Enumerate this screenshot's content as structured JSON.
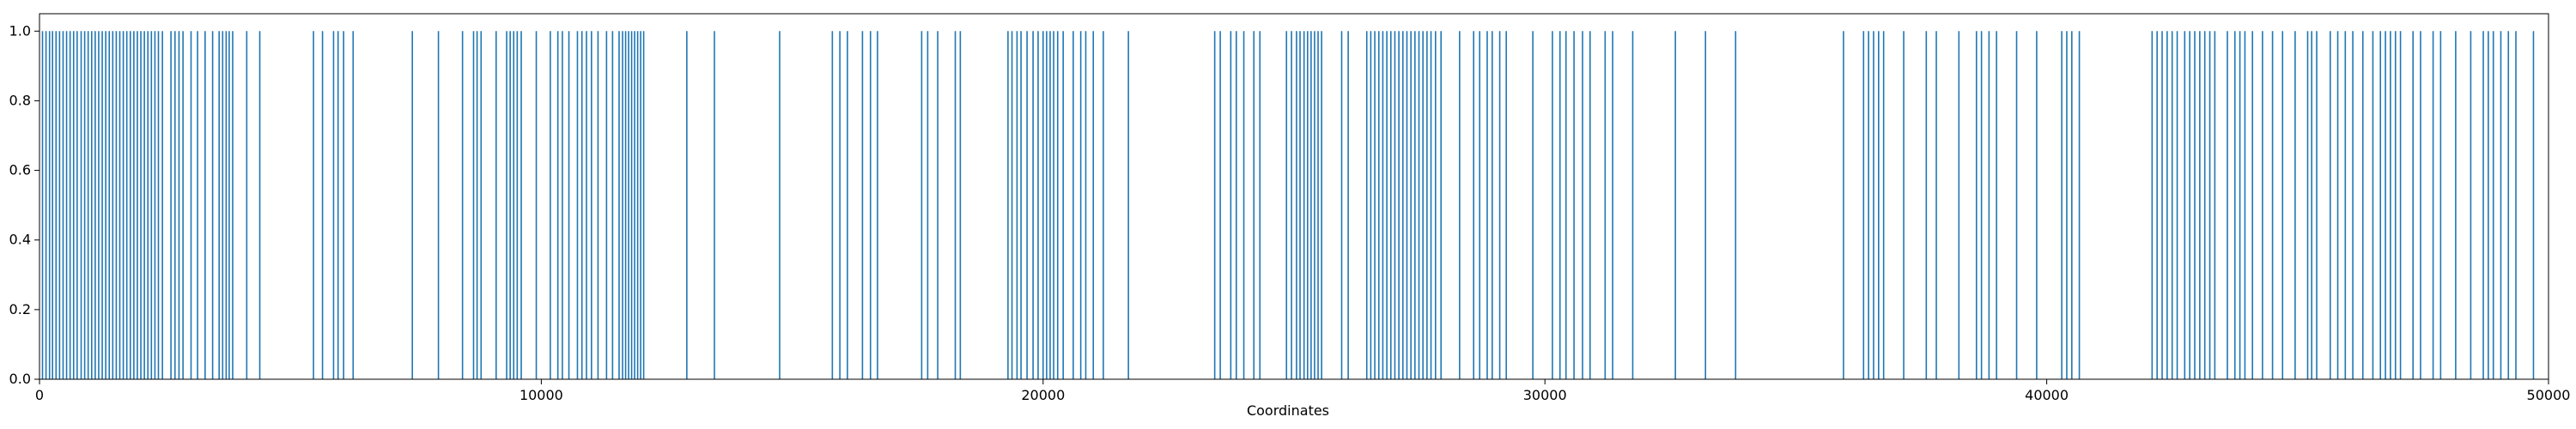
{
  "chart_data": {
    "type": "bar",
    "title": "",
    "xlabel": "Coordinates",
    "ylabel": "",
    "xlim": [
      0,
      50000
    ],
    "ylim": [
      0,
      1.05
    ],
    "x_ticks": [
      0,
      10000,
      20000,
      30000,
      40000,
      50000
    ],
    "y_ticks": [
      0.0,
      0.2,
      0.4,
      0.6,
      0.8,
      1.0
    ],
    "x_tick_labels": [
      "0",
      "10000",
      "20000",
      "30000",
      "40000",
      "50000"
    ],
    "y_tick_labels": [
      "0.0",
      "0.2",
      "0.4",
      "0.6",
      "0.8",
      "1.0"
    ],
    "grid": false,
    "legend": "none",
    "bar_value": 1.0,
    "x": [
      60,
      130,
      200,
      260,
      330,
      400,
      470,
      540,
      610,
      680,
      750,
      830,
      900,
      970,
      1040,
      1110,
      1180,
      1250,
      1320,
      1390,
      1460,
      1530,
      1600,
      1670,
      1740,
      1810,
      1880,
      1950,
      2020,
      2090,
      2160,
      2230,
      2300,
      2370,
      2450,
      2620,
      2700,
      2780,
      2860,
      3020,
      3150,
      3300,
      3450,
      3580,
      3650,
      3720,
      3780,
      3850,
      4130,
      4390,
      5460,
      5640,
      5860,
      5950,
      6060,
      6250,
      7430,
      7950,
      8430,
      8650,
      8720,
      8800,
      9100,
      9310,
      9380,
      9450,
      9520,
      9600,
      9900,
      10180,
      10330,
      10420,
      10550,
      10720,
      10810,
      10900,
      11000,
      11130,
      11300,
      11420,
      11550,
      11620,
      11680,
      11740,
      11800,
      11860,
      11920,
      11980,
      12040,
      12900,
      13450,
      14750,
      15800,
      15950,
      16100,
      16400,
      16560,
      16700,
      17580,
      17700,
      17900,
      18250,
      18350,
      19300,
      19380,
      19480,
      19560,
      19680,
      19800,
      19900,
      20000,
      20070,
      20140,
      20210,
      20290,
      20400,
      20600,
      20750,
      20850,
      21000,
      21200,
      21700,
      23420,
      23530,
      23740,
      23850,
      24000,
      24200,
      24320,
      24850,
      24950,
      25050,
      25120,
      25200,
      25270,
      25340,
      25410,
      25480,
      25550,
      25950,
      26080,
      26450,
      26530,
      26610,
      26690,
      26770,
      26850,
      26930,
      27010,
      27090,
      27170,
      27250,
      27330,
      27410,
      27490,
      27570,
      27650,
      27730,
      27820,
      27930,
      28300,
      28580,
      28700,
      28850,
      28950,
      29100,
      29230,
      29760,
      30150,
      30300,
      30420,
      30580,
      30750,
      30900,
      31200,
      31350,
      31750,
      32600,
      33200,
      33800,
      35950,
      36350,
      36450,
      36550,
      36650,
      36750,
      37150,
      37600,
      37800,
      38250,
      38600,
      38700,
      38850,
      39000,
      39400,
      39800,
      40300,
      40400,
      40500,
      40650,
      42100,
      42200,
      42300,
      42400,
      42500,
      42600,
      42750,
      42850,
      42950,
      43050,
      43150,
      43250,
      43350,
      43600,
      43750,
      43850,
      43950,
      44100,
      44300,
      44500,
      44700,
      44950,
      45200,
      45280,
      45380,
      45650,
      45800,
      45950,
      46100,
      46300,
      46500,
      46650,
      46750,
      46850,
      46950,
      47050,
      47300,
      47450,
      47700,
      47850,
      48150,
      48450,
      48700,
      48800,
      48900,
      49050,
      49200,
      49350,
      49700
    ]
  },
  "colors": {
    "bar": "#1f77b4",
    "axis": "#000000",
    "background": "#ffffff"
  }
}
